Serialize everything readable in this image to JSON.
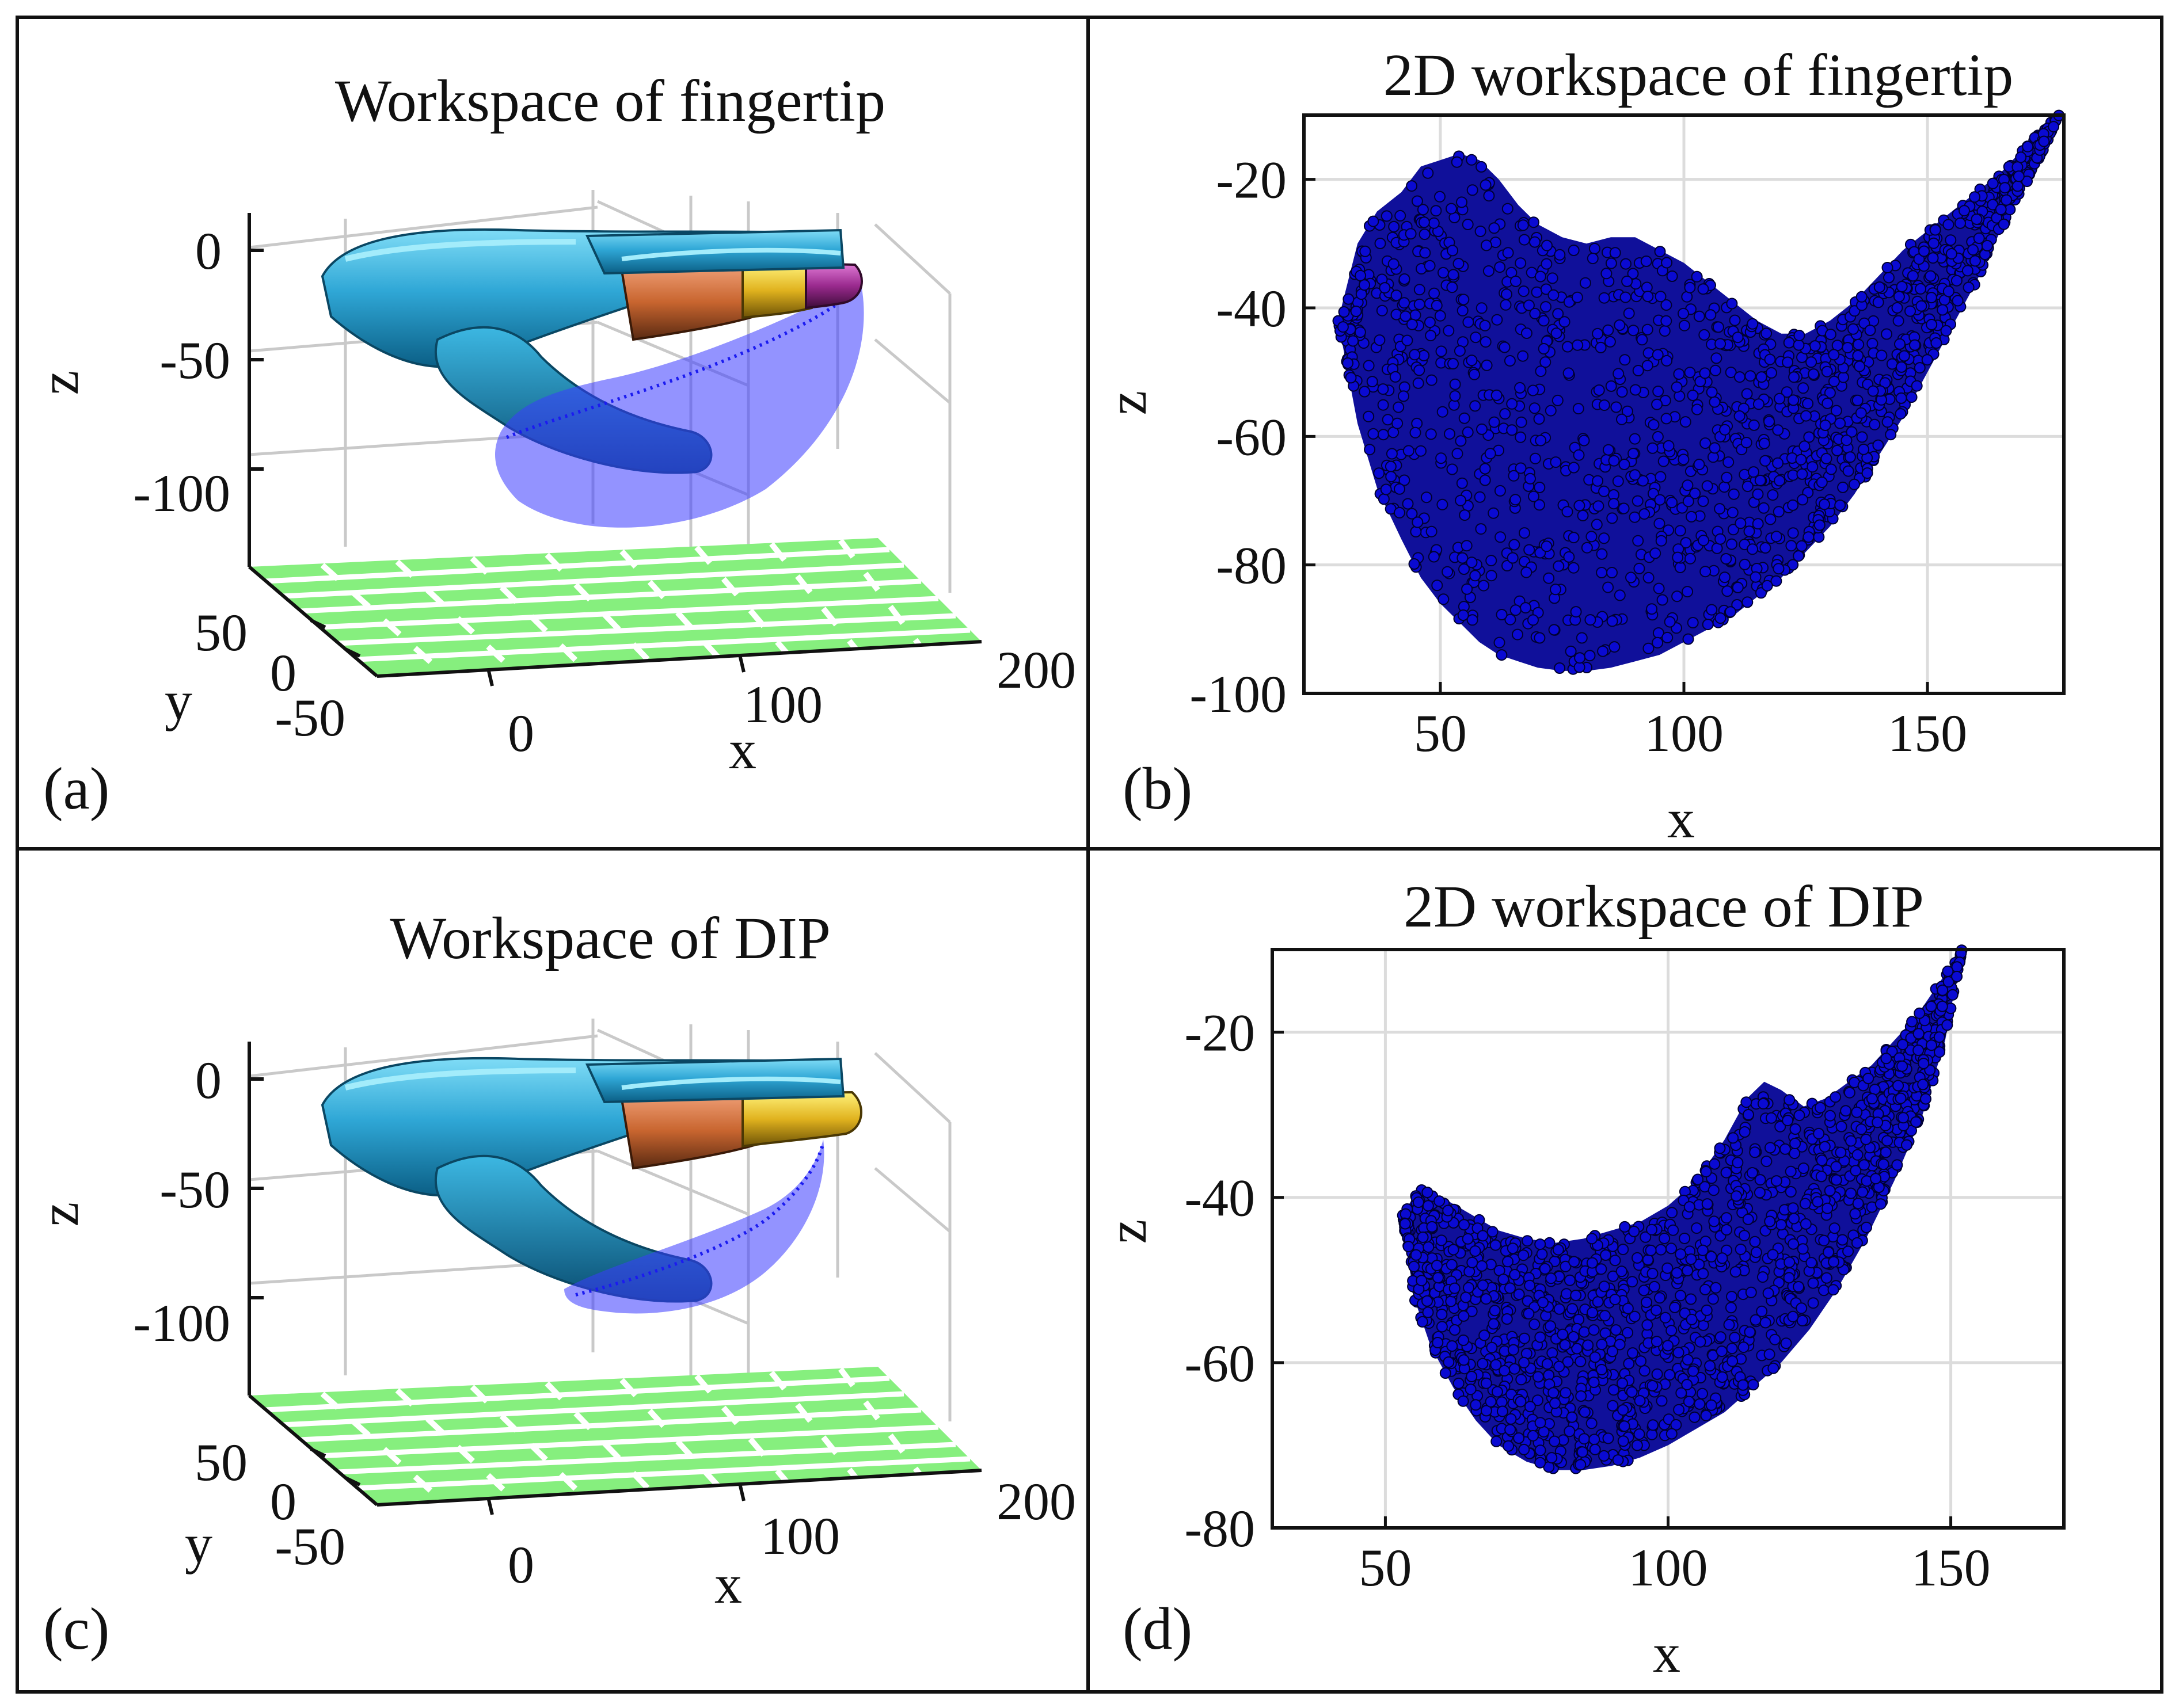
{
  "figure": {
    "panels": [
      {
        "id": "a",
        "label": "(a)",
        "title": "Workspace of fingertip",
        "type": "3d",
        "axes": {
          "xlabel": "x",
          "ylabel": "y",
          "zlabel": "z",
          "xticks": [
            "0",
            "100",
            "200"
          ],
          "yticks": [
            "50",
            "0",
            "-50"
          ],
          "zticks": [
            "0",
            "-50",
            "-100"
          ]
        }
      },
      {
        "id": "b",
        "label": "(b)",
        "title": "2D workspace of fingertip",
        "type": "scatter",
        "axes": {
          "xlabel": "x",
          "ylabel": "z"
        }
      },
      {
        "id": "c",
        "label": "(c)",
        "title": "Workspace of DIP",
        "type": "3d",
        "axes": {
          "xlabel": "x",
          "ylabel": "y",
          "zlabel": "z",
          "xticks": [
            "0",
            "100",
            "200"
          ],
          "yticks": [
            "50",
            "0",
            "-50"
          ],
          "zticks": [
            "0",
            "-50",
            "-100"
          ]
        }
      },
      {
        "id": "d",
        "label": "(d)",
        "title": "2D workspace of DIP",
        "type": "scatter",
        "axes": {
          "xlabel": "x",
          "ylabel": "z"
        }
      }
    ]
  },
  "chart_data": [
    {
      "panel": "b",
      "type": "scatter",
      "title": "2D workspace of fingertip",
      "xlabel": "x",
      "ylabel": "z",
      "xlim": [
        22,
        178
      ],
      "ylim": [
        -100,
        -10
      ],
      "xticks": [
        50,
        100,
        150
      ],
      "yticks": [
        -100,
        -80,
        -60,
        -40,
        -20
      ],
      "grid": true,
      "series": [
        {
          "name": "fingertip",
          "color": "#0a0ad2",
          "region": {
            "x_range": [
              29,
              177
            ],
            "upper_boundary": [
              [
                29,
                -42
              ],
              [
                33,
                -30
              ],
              [
                37,
                -25
              ],
              [
                42,
                -22
              ],
              [
                46,
                -18
              ],
              [
                50,
                -17
              ],
              [
                54,
                -16
              ],
              [
                58,
                -17
              ],
              [
                62,
                -20
              ],
              [
                66,
                -24
              ],
              [
                70,
                -27
              ],
              [
                75,
                -29
              ],
              [
                80,
                -30
              ],
              [
                85,
                -29
              ],
              [
                90,
                -29
              ],
              [
                95,
                -31
              ],
              [
                100,
                -33
              ],
              [
                105,
                -36
              ],
              [
                110,
                -39
              ],
              [
                115,
                -42
              ],
              [
                120,
                -44
              ],
              [
                125,
                -44
              ],
              [
                130,
                -42
              ],
              [
                135,
                -39
              ],
              [
                140,
                -35
              ],
              [
                145,
                -31
              ],
              [
                150,
                -28
              ],
              [
                155,
                -25
              ],
              [
                160,
                -22
              ],
              [
                165,
                -19
              ],
              [
                170,
                -15
              ],
              [
                174,
                -12
              ],
              [
                177,
                -10
              ]
            ],
            "lower_boundary": [
              [
                29,
                -42
              ],
              [
                33,
                -58
              ],
              [
                37,
                -68
              ],
              [
                42,
                -76
              ],
              [
                46,
                -82
              ],
              [
                50,
                -86
              ],
              [
                54,
                -89
              ],
              [
                58,
                -92
              ],
              [
                62,
                -94
              ],
              [
                66,
                -95
              ],
              [
                70,
                -96
              ],
              [
                75,
                -96.5
              ],
              [
                80,
                -96.5
              ],
              [
                85,
                -96
              ],
              [
                90,
                -95
              ],
              [
                95,
                -94
              ],
              [
                100,
                -92
              ],
              [
                105,
                -90
              ],
              [
                110,
                -88
              ],
              [
                115,
                -85
              ],
              [
                120,
                -82
              ],
              [
                125,
                -78
              ],
              [
                130,
                -74
              ],
              [
                135,
                -69
              ],
              [
                140,
                -63
              ],
              [
                145,
                -57
              ],
              [
                150,
                -50
              ],
              [
                155,
                -43
              ],
              [
                160,
                -36
              ],
              [
                165,
                -28
              ],
              [
                170,
                -21
              ],
              [
                174,
                -15
              ],
              [
                177,
                -10
              ]
            ]
          }
        }
      ]
    },
    {
      "panel": "d",
      "type": "scatter",
      "title": "2D workspace of DIP",
      "xlabel": "x",
      "ylabel": "z",
      "xlim": [
        30,
        170
      ],
      "ylim": [
        -80,
        -10
      ],
      "xticks": [
        50,
        100,
        150
      ],
      "yticks": [
        -80,
        -60,
        -40,
        -20
      ],
      "grid": true,
      "series": [
        {
          "name": "DIP",
          "color": "#0a0ad2",
          "region": {
            "x_range": [
              53,
              152
            ],
            "upper_boundary": [
              [
                53,
                -42
              ],
              [
                56,
                -39
              ],
              [
                60,
                -40
              ],
              [
                65,
                -42
              ],
              [
                70,
                -44
              ],
              [
                75,
                -45
              ],
              [
                80,
                -45.5
              ],
              [
                85,
                -45
              ],
              [
                90,
                -44
              ],
              [
                95,
                -43
              ],
              [
                100,
                -41
              ],
              [
                105,
                -38
              ],
              [
                110,
                -33
              ],
              [
                114,
                -28
              ],
              [
                117,
                -26
              ],
              [
                120,
                -27
              ],
              [
                124,
                -29
              ],
              [
                128,
                -28
              ],
              [
                132,
                -26
              ],
              [
                136,
                -24
              ],
              [
                140,
                -21
              ],
              [
                144,
                -18
              ],
              [
                148,
                -14
              ],
              [
                152,
                -10
              ]
            ],
            "lower_boundary": [
              [
                53,
                -42
              ],
              [
                55,
                -52
              ],
              [
                58,
                -58
              ],
              [
                62,
                -63
              ],
              [
                66,
                -67
              ],
              [
                70,
                -70
              ],
              [
                75,
                -72
              ],
              [
                80,
                -73
              ],
              [
                85,
                -73
              ],
              [
                90,
                -72.5
              ],
              [
                95,
                -71.5
              ],
              [
                100,
                -70
              ],
              [
                105,
                -68
              ],
              [
                110,
                -66
              ],
              [
                115,
                -63
              ],
              [
                120,
                -60
              ],
              [
                125,
                -56
              ],
              [
                130,
                -51
              ],
              [
                135,
                -45
              ],
              [
                140,
                -38
              ],
              [
                145,
                -30
              ],
              [
                149,
                -21
              ],
              [
                152,
                -10
              ]
            ]
          }
        }
      ]
    }
  ]
}
